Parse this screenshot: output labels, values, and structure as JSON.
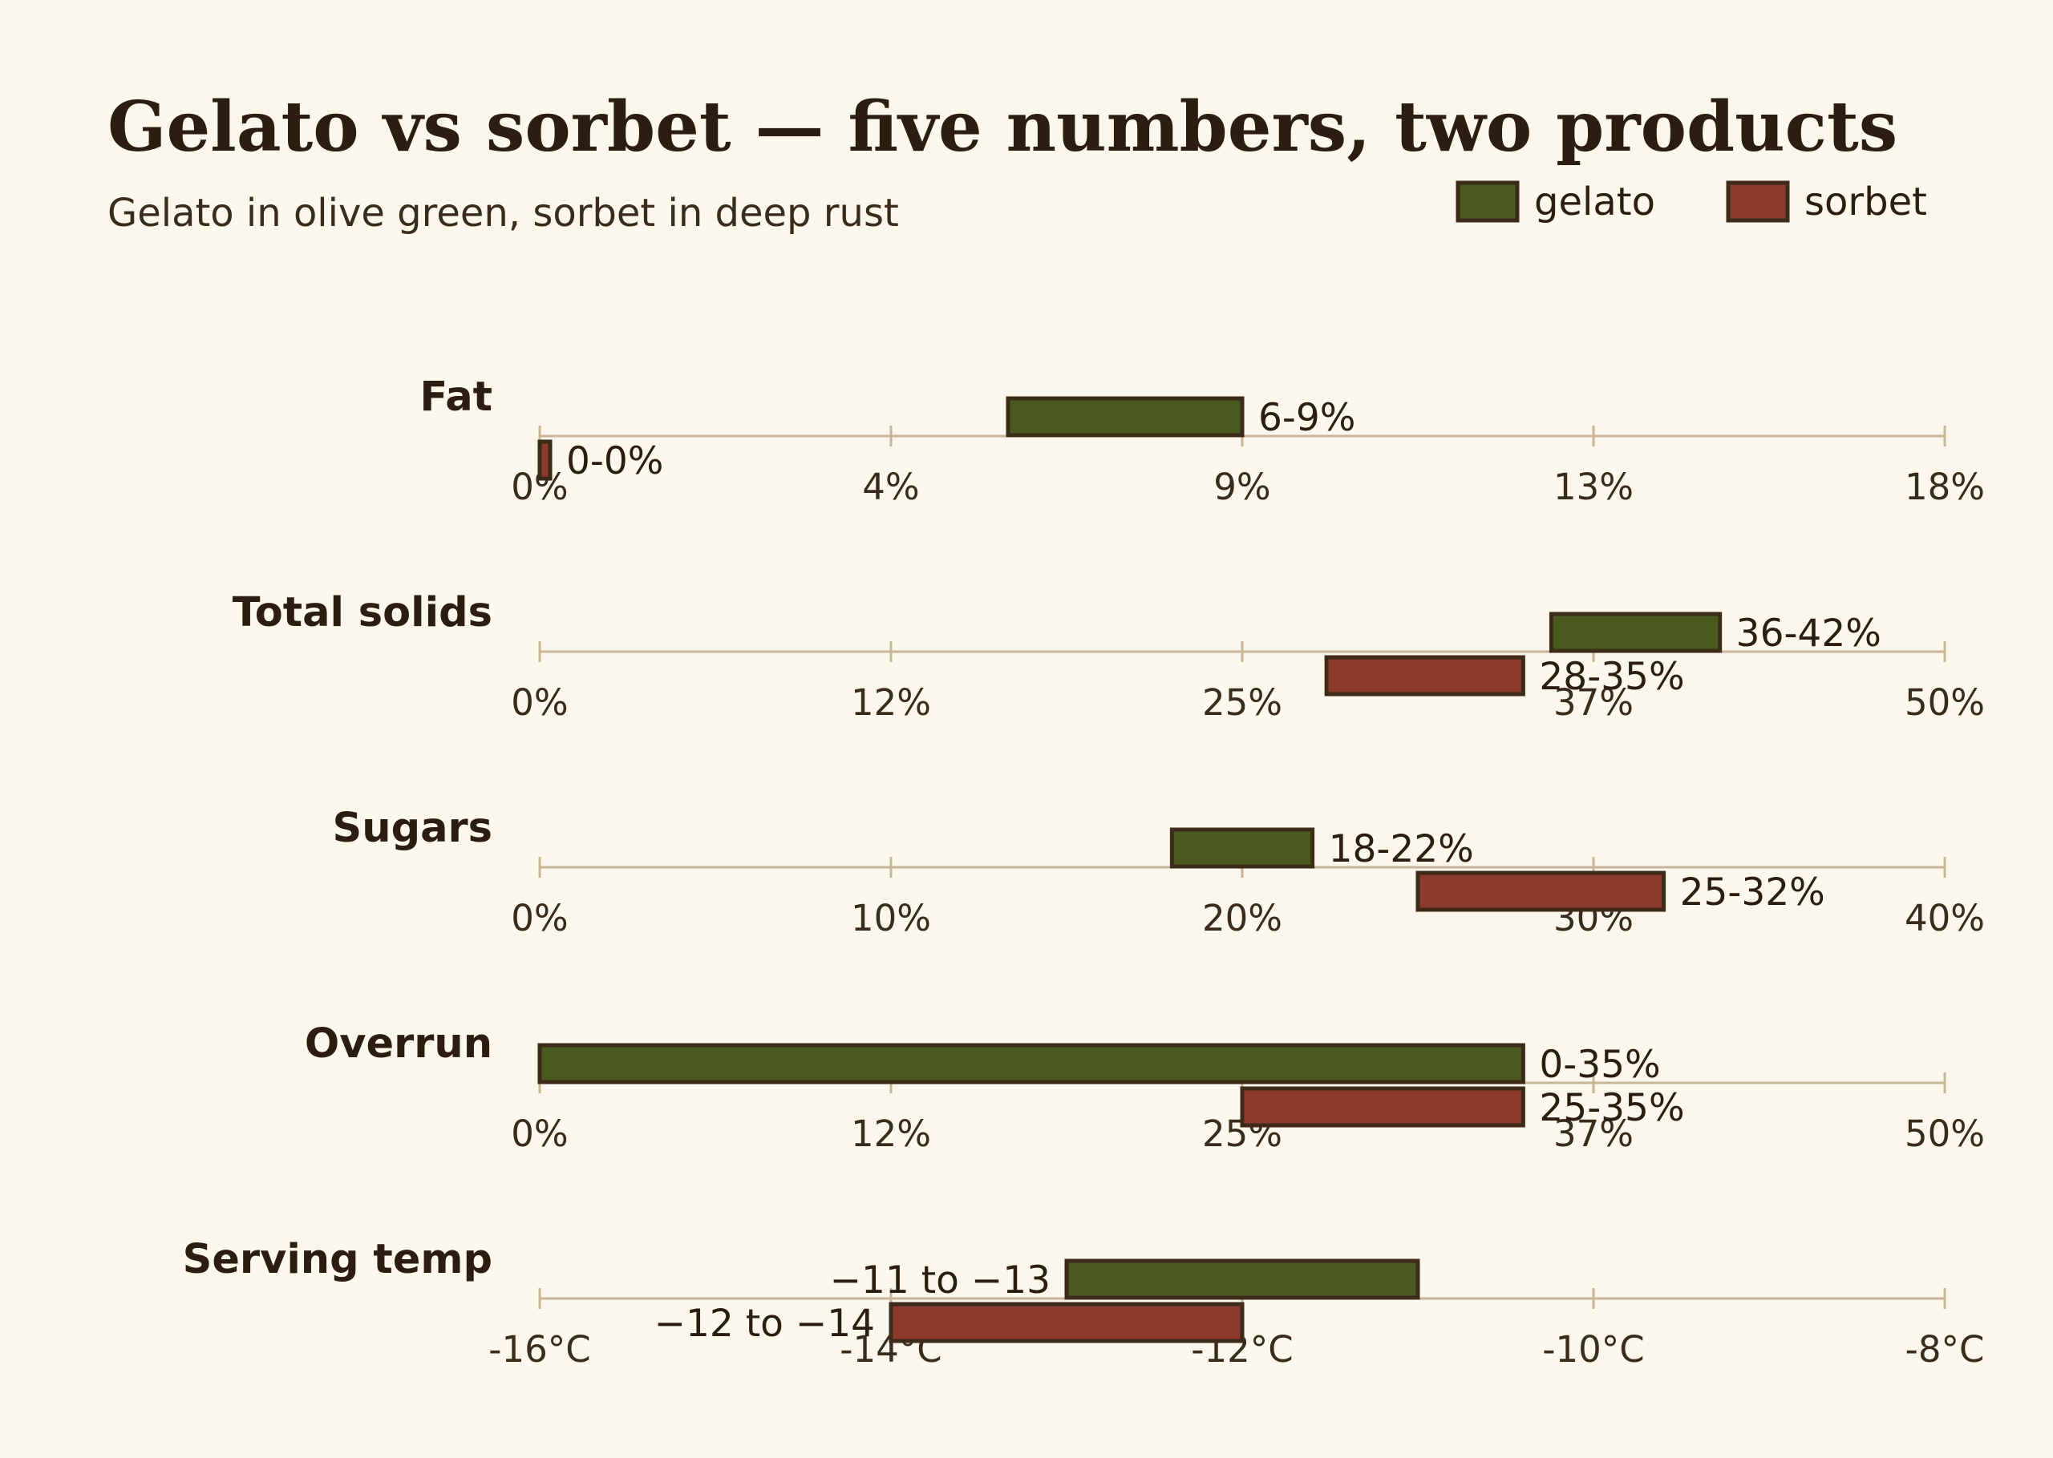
{
  "title": "Gelato vs sorbet — five numbers, two products",
  "subtitle": "Gelato in olive green, sorbet in deep rust",
  "colors": {
    "gelato": "#4a5a1e",
    "sorbet": "#8b3a2b",
    "edge": "#3d2b1a",
    "axis": "#c9b597",
    "background": "#fcf7ec"
  },
  "legend": [
    {
      "key": "gelato",
      "label": "gelato"
    },
    {
      "key": "sorbet",
      "label": "sorbet"
    }
  ],
  "chart_data": {
    "type": "bar",
    "orientation": "horizontal-range",
    "series": [
      {
        "name": "gelato"
      },
      {
        "name": "sorbet"
      }
    ],
    "rows": [
      {
        "label": "Fat",
        "xlim": [
          0,
          18
        ],
        "ticks": [
          "0%",
          "4%",
          "9%",
          "13%",
          "18%"
        ],
        "gelato": {
          "range": [
            6,
            9
          ],
          "label": "6-9%"
        },
        "sorbet": {
          "range": [
            0,
            0
          ],
          "label": "0-0%"
        }
      },
      {
        "label": "Total solids",
        "xlim": [
          0,
          50
        ],
        "ticks": [
          "0%",
          "12%",
          "25%",
          "37%",
          "50%"
        ],
        "gelato": {
          "range": [
            36,
            42
          ],
          "label": "36-42%"
        },
        "sorbet": {
          "range": [
            28,
            35
          ],
          "label": "28-35%"
        }
      },
      {
        "label": "Sugars",
        "xlim": [
          0,
          40
        ],
        "ticks": [
          "0%",
          "10%",
          "20%",
          "30%",
          "40%"
        ],
        "gelato": {
          "range": [
            18,
            22
          ],
          "label": "18-22%"
        },
        "sorbet": {
          "range": [
            25,
            32
          ],
          "label": "25-32%"
        }
      },
      {
        "label": "Overrun",
        "xlim": [
          0,
          50
        ],
        "ticks": [
          "0%",
          "12%",
          "25%",
          "37%",
          "50%"
        ],
        "gelato": {
          "range": [
            0,
            35
          ],
          "label": "0-35%"
        },
        "sorbet": {
          "range": [
            25,
            35
          ],
          "label": "25-35%"
        }
      },
      {
        "label": "Serving temp",
        "xlim": [
          -16,
          -8
        ],
        "ticks": [
          "-16°C",
          "-14°C",
          "-12°C",
          "-10°C",
          "-8°C"
        ],
        "gelato": {
          "range": [
            -13,
            -11
          ],
          "label": "−11 to −13"
        },
        "sorbet": {
          "range": [
            -14,
            -12
          ],
          "label": "−12 to −14"
        }
      }
    ]
  }
}
